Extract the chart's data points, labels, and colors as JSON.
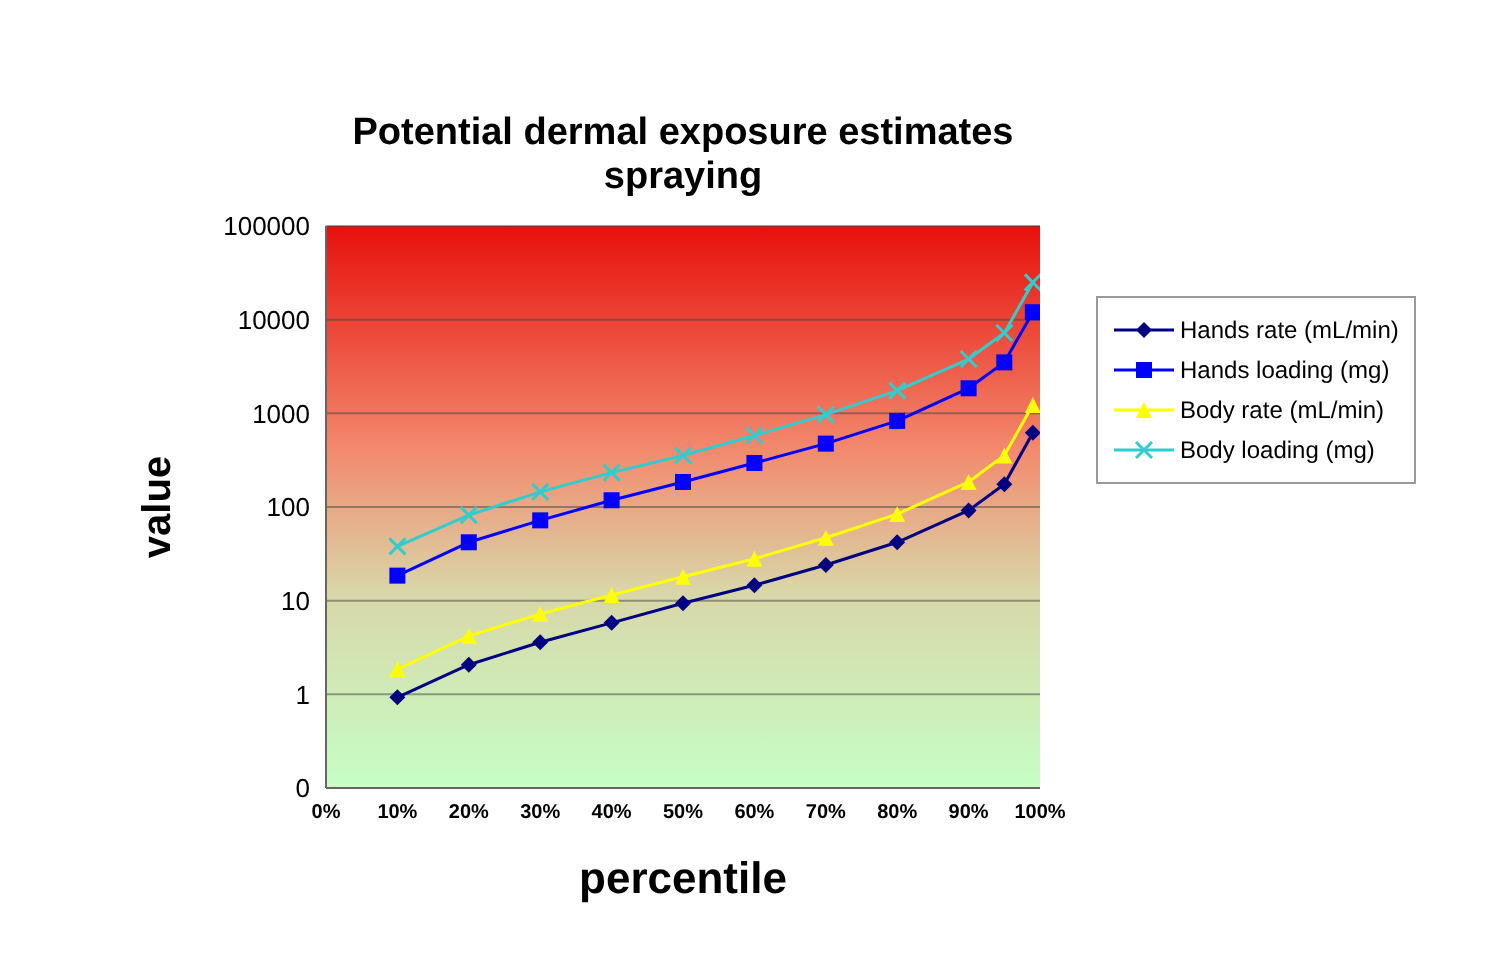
{
  "chart_data": {
    "type": "line",
    "title": "Potential dermal exposure estimates\nspraying",
    "xlabel": "percentile",
    "ylabel": "value",
    "log": "y",
    "grid": "y",
    "legend": "right",
    "x": [
      10,
      20,
      30,
      40,
      50,
      60,
      70,
      80,
      90,
      95,
      99
    ],
    "xlim": [
      0,
      100
    ],
    "xticks": [
      {
        "value": 0,
        "label": "0%"
      },
      {
        "value": 10,
        "label": "10%"
      },
      {
        "value": 20,
        "label": "20%"
      },
      {
        "value": 30,
        "label": "30%"
      },
      {
        "value": 40,
        "label": "40%"
      },
      {
        "value": 50,
        "label": "50%"
      },
      {
        "value": 60,
        "label": "60%"
      },
      {
        "value": 70,
        "label": "70%"
      },
      {
        "value": 80,
        "label": "80%"
      },
      {
        "value": 90,
        "label": "90%"
      },
      {
        "value": 100,
        "label": "100%"
      }
    ],
    "ylim": [
      0.1,
      100000
    ],
    "yticks": [
      {
        "value": 0.1,
        "label": "0"
      },
      1,
      10,
      100,
      1000,
      10000,
      100000
    ],
    "series": [
      {
        "name": "Hands rate (mL/min)",
        "color": "#000080",
        "marker": "diamond",
        "values": [
          0.93,
          2.07,
          3.6,
          5.8,
          9.4,
          14.6,
          24,
          42,
          92,
          175,
          620
        ]
      },
      {
        "name": "Hands loading (mg)",
        "color": "#0000ff",
        "marker": "square",
        "values": [
          18.5,
          42,
          72,
          118,
          185,
          295,
          475,
          830,
          1850,
          3500,
          12000
        ]
      },
      {
        "name": "Body rate (mL/min)",
        "color": "#ffff00",
        "marker": "triangle",
        "values": [
          1.85,
          4.2,
          7.2,
          11.5,
          18,
          28,
          47,
          84,
          185,
          355,
          1230
        ]
      },
      {
        "name": "Body loading (mg)",
        "color": "#33cccc",
        "marker": "cross",
        "values": [
          38,
          82,
          145,
          233,
          355,
          580,
          970,
          1750,
          3800,
          7200,
          25000
        ]
      }
    ]
  }
}
